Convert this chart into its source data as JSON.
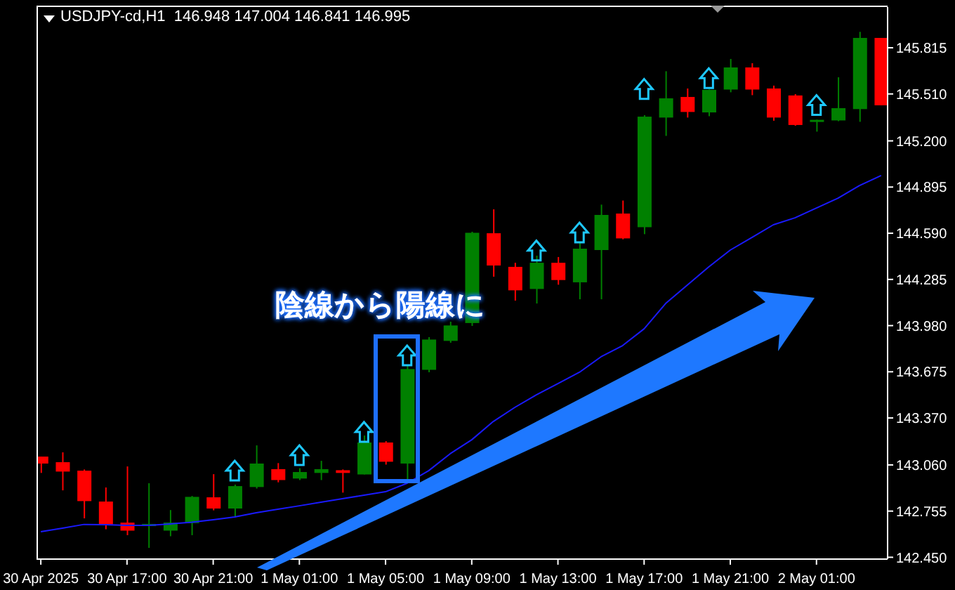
{
  "chart_data": {
    "type": "candlestick",
    "title": "USDJPY-cd,H1  146.948 147.004 146.841 146.995",
    "annotations": [
      "陰線から陽線に"
    ],
    "x": [
      "2025-04-30T13:00",
      "2025-04-30T14:00",
      "2025-04-30T15:00",
      "2025-04-30T16:00",
      "2025-04-30T17:00",
      "2025-04-30T18:00",
      "2025-04-30T19:00",
      "2025-04-30T20:00",
      "2025-04-30T21:00",
      "2025-04-30T22:00",
      "2025-04-30T23:00",
      "2025-05-01T00:00",
      "2025-05-01T01:00",
      "2025-05-01T02:00",
      "2025-05-01T03:00",
      "2025-05-01T04:00",
      "2025-05-01T05:00",
      "2025-05-01T06:00",
      "2025-05-01T07:00",
      "2025-05-01T08:00",
      "2025-05-01T09:00",
      "2025-05-01T10:00",
      "2025-05-01T11:00",
      "2025-05-01T12:00",
      "2025-05-01T13:00",
      "2025-05-01T14:00",
      "2025-05-01T15:00",
      "2025-05-01T16:00",
      "2025-05-01T17:00",
      "2025-05-01T18:00",
      "2025-05-01T19:00",
      "2025-05-01T20:00",
      "2025-05-01T21:00",
      "2025-05-01T22:00",
      "2025-05-01T23:00",
      "2025-05-02T00:00",
      "2025-05-02T01:00",
      "2025-05-02T02:00",
      "2025-05-02T03:00",
      "2025-05-02T04:00"
    ],
    "ohlc": [
      [
        143.115,
        143.115,
        143.007,
        143.069
      ],
      [
        143.078,
        143.143,
        142.892,
        143.016
      ],
      [
        143.022,
        143.03,
        142.707,
        142.821
      ],
      [
        142.818,
        142.911,
        142.635,
        142.667
      ],
      [
        142.679,
        143.05,
        142.596,
        142.626
      ],
      [
        142.66,
        142.939,
        142.512,
        142.67
      ],
      [
        142.626,
        142.762,
        142.589,
        142.679
      ],
      [
        142.676,
        142.855,
        142.596,
        142.849
      ],
      [
        142.846,
        142.999,
        142.76,
        142.772
      ],
      [
        142.772,
        142.93,
        142.713,
        142.92
      ],
      [
        142.914,
        143.189,
        142.904,
        143.069
      ],
      [
        143.032,
        143.072,
        142.945,
        142.96
      ],
      [
        142.97,
        143.038,
        142.96,
        143.013
      ],
      [
        143.007,
        143.087,
        142.96,
        143.032
      ],
      [
        143.025,
        143.03,
        142.877,
        143.007
      ],
      [
        142.997,
        143.254,
        142.997,
        143.208
      ],
      [
        143.208,
        143.217,
        143.062,
        143.081
      ],
      [
        143.069,
        143.718,
        142.96,
        143.693
      ],
      [
        143.688,
        143.904,
        143.672,
        143.888
      ],
      [
        143.879,
        144.006,
        143.867,
        143.981
      ],
      [
        143.997,
        144.6,
        143.978,
        144.593
      ],
      [
        144.59,
        144.748,
        144.303,
        144.377
      ],
      [
        144.368,
        144.395,
        144.145,
        144.213
      ],
      [
        144.222,
        144.442,
        144.126,
        144.395
      ],
      [
        144.395,
        144.433,
        144.25,
        144.281
      ],
      [
        144.266,
        144.525,
        144.154,
        144.488
      ],
      [
        144.479,
        144.779,
        144.154,
        144.711
      ],
      [
        144.72,
        144.806,
        144.55,
        144.556
      ],
      [
        144.63,
        145.37,
        144.584,
        145.36
      ],
      [
        145.354,
        145.66,
        145.233,
        145.481
      ],
      [
        145.49,
        145.546,
        145.354,
        145.391
      ],
      [
        145.388,
        145.54,
        145.363,
        145.537
      ],
      [
        145.539,
        145.741,
        145.521,
        145.685
      ],
      [
        145.685,
        145.713,
        145.502,
        145.539
      ],
      [
        145.546,
        145.565,
        145.333,
        145.354
      ],
      [
        145.5,
        145.509,
        145.3,
        145.305
      ],
      [
        145.326,
        145.34,
        145.261,
        145.339
      ],
      [
        145.335,
        145.62,
        145.33,
        145.416
      ],
      [
        145.41,
        145.92,
        145.326,
        145.88
      ],
      [
        145.88,
        145.88,
        145.435,
        145.435
      ]
    ],
    "colors": [
      "#ff0000",
      "#ff0000",
      "#ff0000",
      "#ff0000",
      "#ff0000",
      "#008000",
      "#008000",
      "#008000",
      "#ff0000",
      "#008000",
      "#008000",
      "#ff0000",
      "#008000",
      "#008000",
      "#ff0000",
      "#008000",
      "#ff0000",
      "#008000",
      "#008000",
      "#008000",
      "#008000",
      "#ff0000",
      "#ff0000",
      "#008000",
      "#ff0000",
      "#008000",
      "#008000",
      "#ff0000",
      "#008000",
      "#008000",
      "#ff0000",
      "#008000",
      "#008000",
      "#ff0000",
      "#ff0000",
      "#ff0000",
      "#008000",
      "#008000",
      "#008000",
      "#ff0000"
    ],
    "series": [
      {
        "type": "line",
        "color": "#1a1aff",
        "values": [
          142.619,
          142.642,
          142.667,
          142.665,
          142.661,
          142.661,
          142.67,
          142.682,
          142.698,
          142.716,
          142.744,
          142.767,
          142.79,
          142.814,
          142.837,
          142.86,
          142.883,
          142.939,
          143.022,
          143.134,
          143.226,
          143.347,
          143.44,
          143.523,
          143.597,
          143.672,
          143.774,
          143.848,
          143.959,
          144.126,
          144.247,
          144.368,
          144.479,
          144.562,
          144.646,
          144.692,
          144.757,
          144.822,
          144.905,
          144.971
        ]
      },
      {
        "type": "scatter",
        "color": "#1ec8ff",
        "marker": "triangle",
        "x": [
          "2025-04-30T22:00",
          "2025-05-01T01:00",
          "2025-05-01T04:00",
          "2025-05-01T06:00",
          "2025-05-01T12:00",
          "2025-05-01T14:00",
          "2025-05-01T17:00",
          "2025-05-01T20:00",
          "2025-05-02T01:00"
        ],
        "values": [
          143.022,
          143.124,
          143.278,
          143.783,
          144.476,
          144.595,
          145.543,
          145.614,
          145.437
        ]
      }
    ],
    "xlim": [
      "2025-04-30T12:48",
      "2025-05-02T04:18"
    ],
    "xticks": [
      {
        "value": "2025-04-30T13:00",
        "label": "30 Apr 2025"
      },
      {
        "value": "2025-04-30T17:00",
        "label": "30 Apr 17:00"
      },
      {
        "value": "2025-04-30T21:00",
        "label": "30 Apr 21:00"
      },
      {
        "value": "2025-05-01T01:00",
        "label": "1 May 01:00"
      },
      {
        "value": "2025-05-01T05:00",
        "label": "1 May 05:00"
      },
      {
        "value": "2025-05-01T09:00",
        "label": "1 May 09:00"
      },
      {
        "value": "2025-05-01T13:00",
        "label": "1 May 13:00"
      },
      {
        "value": "2025-05-01T17:00",
        "label": "1 May 17:00"
      },
      {
        "value": "2025-05-01T21:00",
        "label": "1 May 21:00"
      },
      {
        "value": "2025-05-02T01:00",
        "label": "2 May 01:00"
      }
    ],
    "ylim": [
      142.438,
      146.084
    ],
    "yticks": [
      {
        "value": 142.45,
        "label": "142.450"
      },
      142.755,
      {
        "value": 143.06,
        "label": "143.060"
      },
      {
        "value": 143.37,
        "label": "143.370"
      },
      143.675,
      {
        "value": 143.98,
        "label": "143.980"
      },
      144.285,
      {
        "value": 144.59,
        "label": "144.590"
      },
      144.895,
      {
        "value": 145.2,
        "label": "145.200"
      },
      {
        "value": 145.51,
        "label": "145.510"
      },
      145.815
    ],
    "grid": false,
    "legend": false
  }
}
